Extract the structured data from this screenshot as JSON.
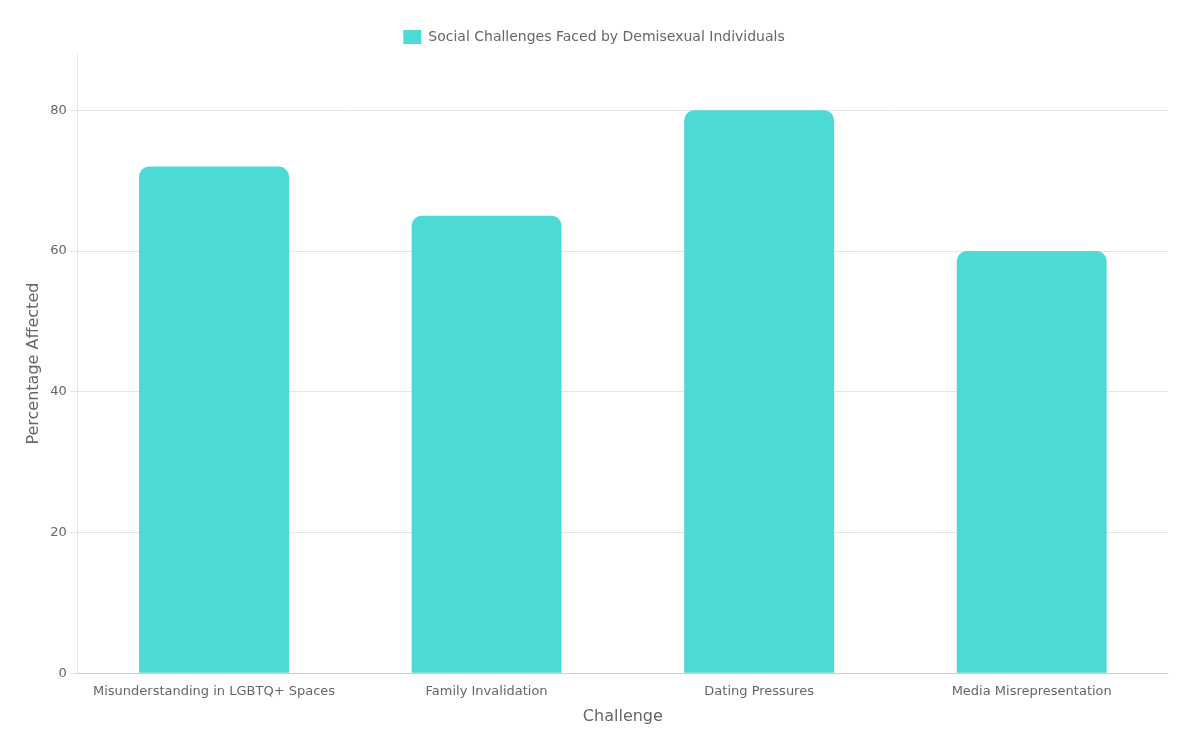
{
  "chart_data": {
    "type": "bar",
    "categories": [
      "Misunderstanding in LGBTQ+ Spaces",
      "Family Invalidation",
      "Dating Pressures",
      "Media Misrepresentation"
    ],
    "series": [
      {
        "name": "Social Challenges Faced by Demisexual Individuals",
        "color": "#4DD9D5",
        "values": [
          72,
          65,
          80,
          60
        ]
      }
    ],
    "x_label": "Challenge",
    "y_label": "Percentage Affected",
    "ylim": [
      0,
      88
    ],
    "yticks": [
      0,
      20,
      40,
      60,
      80
    ],
    "grid": true,
    "legend": "top"
  }
}
